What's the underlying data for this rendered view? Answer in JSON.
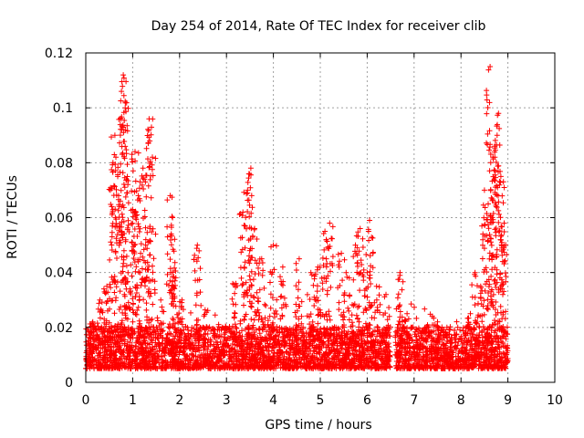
{
  "chart_data": {
    "type": "scatter",
    "title": "Day 254 of 2014, Rate Of TEC Index for receiver clib",
    "xlabel": "GPS time / hours",
    "ylabel": "ROTI / TECUs",
    "xlim": [
      0,
      10
    ],
    "ylim": [
      0,
      0.12
    ],
    "xticks": [
      "0",
      "1",
      "2",
      "3",
      "4",
      "5",
      "6",
      "7",
      "8",
      "9",
      "10"
    ],
    "yticks": [
      "0",
      "0.02",
      "0.04",
      "0.06",
      "0.08",
      "0.1",
      "0.12"
    ],
    "grid": true,
    "marker": "+",
    "marker_color": "#ff0000",
    "observation_windows_hours": [
      [
        0.0,
        6.5
      ],
      [
        6.6,
        9.0
      ]
    ],
    "baseline_band": [
      0.005,
      0.022
    ],
    "peaks": [
      {
        "x": 0.15,
        "y": 0.022
      },
      {
        "x": 0.3,
        "y": 0.03
      },
      {
        "x": 0.45,
        "y": 0.035
      },
      {
        "x": 0.58,
        "y": 0.08
      },
      {
        "x": 0.62,
        "y": 0.09
      },
      {
        "x": 0.7,
        "y": 0.068
      },
      {
        "x": 0.76,
        "y": 0.106
      },
      {
        "x": 0.8,
        "y": 0.112
      },
      {
        "x": 0.84,
        "y": 0.1
      },
      {
        "x": 0.9,
        "y": 0.04
      },
      {
        "x": 1.0,
        "y": 0.063
      },
      {
        "x": 1.05,
        "y": 0.084
      },
      {
        "x": 1.12,
        "y": 0.068
      },
      {
        "x": 1.22,
        "y": 0.078
      },
      {
        "x": 1.28,
        "y": 0.052
      },
      {
        "x": 1.35,
        "y": 0.096
      },
      {
        "x": 1.42,
        "y": 0.082
      },
      {
        "x": 1.6,
        "y": 0.03
      },
      {
        "x": 1.8,
        "y": 0.068
      },
      {
        "x": 1.85,
        "y": 0.06
      },
      {
        "x": 1.9,
        "y": 0.037
      },
      {
        "x": 2.05,
        "y": 0.03
      },
      {
        "x": 2.38,
        "y": 0.05
      },
      {
        "x": 2.5,
        "y": 0.02
      },
      {
        "x": 3.2,
        "y": 0.036
      },
      {
        "x": 3.35,
        "y": 0.062
      },
      {
        "x": 3.45,
        "y": 0.07
      },
      {
        "x": 3.52,
        "y": 0.078
      },
      {
        "x": 3.6,
        "y": 0.056
      },
      {
        "x": 3.75,
        "y": 0.045
      },
      {
        "x": 4.0,
        "y": 0.05
      },
      {
        "x": 4.2,
        "y": 0.042
      },
      {
        "x": 4.55,
        "y": 0.045
      },
      {
        "x": 4.8,
        "y": 0.04
      },
      {
        "x": 4.95,
        "y": 0.042
      },
      {
        "x": 5.1,
        "y": 0.055
      },
      {
        "x": 5.2,
        "y": 0.058
      },
      {
        "x": 5.45,
        "y": 0.047
      },
      {
        "x": 5.55,
        "y": 0.04
      },
      {
        "x": 5.75,
        "y": 0.05
      },
      {
        "x": 5.85,
        "y": 0.056
      },
      {
        "x": 6.0,
        "y": 0.04
      },
      {
        "x": 6.05,
        "y": 0.059
      },
      {
        "x": 6.2,
        "y": 0.035
      },
      {
        "x": 6.4,
        "y": 0.032
      },
      {
        "x": 6.7,
        "y": 0.04
      },
      {
        "x": 6.85,
        "y": 0.025
      },
      {
        "x": 7.5,
        "y": 0.022
      },
      {
        "x": 7.7,
        "y": 0.02
      },
      {
        "x": 8.2,
        "y": 0.025
      },
      {
        "x": 8.3,
        "y": 0.04
      },
      {
        "x": 8.42,
        "y": 0.035
      },
      {
        "x": 8.5,
        "y": 0.07
      },
      {
        "x": 8.58,
        "y": 0.065
      },
      {
        "x": 8.62,
        "y": 0.115
      },
      {
        "x": 8.68,
        "y": 0.082
      },
      {
        "x": 8.72,
        "y": 0.086
      },
      {
        "x": 8.8,
        "y": 0.098
      },
      {
        "x": 8.85,
        "y": 0.075
      },
      {
        "x": 8.92,
        "y": 0.058
      }
    ]
  }
}
